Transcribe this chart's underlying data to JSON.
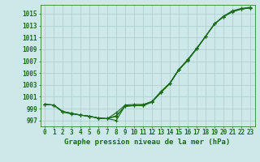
{
  "title": "Graphe pression niveau de la mer (hPa)",
  "background_color": "#cde8e8",
  "grid_color": "#aacccc",
  "line_color": "#1a6b1a",
  "title_fontsize": 6.5,
  "tick_fontsize": 5.5,
  "ylim": [
    996.0,
    1016.5
  ],
  "xlim": [
    -0.5,
    23.5
  ],
  "yticks": [
    997,
    999,
    1001,
    1003,
    1005,
    1007,
    1009,
    1011,
    1013,
    1015
  ],
  "xticks": [
    0,
    1,
    2,
    3,
    4,
    5,
    6,
    7,
    8,
    9,
    10,
    11,
    12,
    13,
    14,
    15,
    16,
    17,
    18,
    19,
    20,
    21,
    22,
    23
  ],
  "series": [
    [
      999.7,
      999.6,
      998.5,
      998.2,
      997.9,
      997.7,
      997.4,
      997.3,
      997.0,
      999.5,
      999.5,
      999.6,
      1000.2,
      1001.8,
      1003.3,
      1005.6,
      1007.3,
      1009.2,
      1011.2,
      1013.3,
      1014.6,
      1015.5,
      1015.9,
      1016.1
    ],
    [
      999.7,
      999.6,
      998.4,
      998.1,
      997.9,
      997.7,
      997.4,
      997.3,
      997.7,
      999.4,
      999.5,
      999.5,
      1000.1,
      1001.7,
      1003.2,
      1005.5,
      1007.1,
      1009.1,
      1011.2,
      1013.3,
      1014.5,
      1015.3,
      1015.8,
      1016.0
    ],
    [
      999.7,
      999.6,
      998.5,
      998.2,
      997.9,
      997.7,
      997.4,
      997.3,
      997.8,
      999.4,
      999.5,
      999.5,
      1000.1,
      1001.8,
      1003.3,
      1005.6,
      1007.2,
      1009.1,
      1011.2,
      1013.3,
      1014.5,
      1015.4,
      1015.8,
      1016.0
    ],
    [
      999.7,
      999.6,
      998.5,
      998.2,
      997.9,
      997.7,
      997.4,
      997.3,
      998.3,
      999.6,
      999.7,
      999.7,
      1000.2,
      1001.9,
      1003.3,
      1005.6,
      1007.2,
      1009.1,
      1011.2,
      1013.3,
      1014.5,
      1015.4,
      1015.8,
      1016.0
    ]
  ],
  "marker": "+",
  "markersize": 3.5,
  "linewidth": 0.8
}
